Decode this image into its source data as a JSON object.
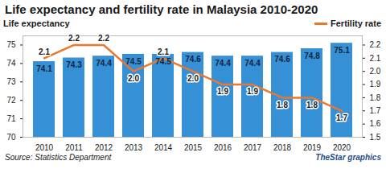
{
  "chart_data": {
    "type": "bar",
    "title": "Life expectancy and fertility rate in Malaysia 2010-2020",
    "caption": "Source: Statistics Department",
    "annotations": [
      "TheStar graphics"
    ],
    "categories": [
      "2010",
      "2011",
      "2012",
      "2013",
      "2014",
      "2015",
      "2016",
      "2017",
      "2018",
      "2019",
      "2020"
    ],
    "series": [
      {
        "name": "Life expectancy",
        "type": "bar",
        "color": "#3590d6",
        "values": [
          74.1,
          74.3,
          74.4,
          74.5,
          74.5,
          74.6,
          74.4,
          74.4,
          74.6,
          74.8,
          75.1
        ]
      },
      {
        "name": "Fertility rate",
        "type": "line",
        "axis": "y2",
        "color": "#e8782e",
        "marker": "none",
        "line_style": "solid",
        "values": [
          2.1,
          2.2,
          2.2,
          2.0,
          2.1,
          2.0,
          1.9,
          1.9,
          1.8,
          1.8,
          1.7
        ],
        "value_labels": [
          "2.1",
          "2.2",
          "2.2",
          "2.0",
          "2.1",
          "2.0",
          "1.9",
          "1.9",
          "1.8",
          "1.8",
          "1.7"
        ]
      }
    ],
    "ylim": [
      70,
      75.5
    ],
    "yticks": [
      70,
      71,
      72,
      73,
      74,
      75
    ],
    "y2lim": [
      1.5,
      2.27
    ],
    "y2ticks": [
      1.5,
      1.6,
      1.7,
      1.8,
      1.9,
      {
        "value": 2,
        "label": "2.0"
      },
      2.1,
      2.2
    ],
    "data_labels": true,
    "grid": false,
    "legend": "top"
  }
}
